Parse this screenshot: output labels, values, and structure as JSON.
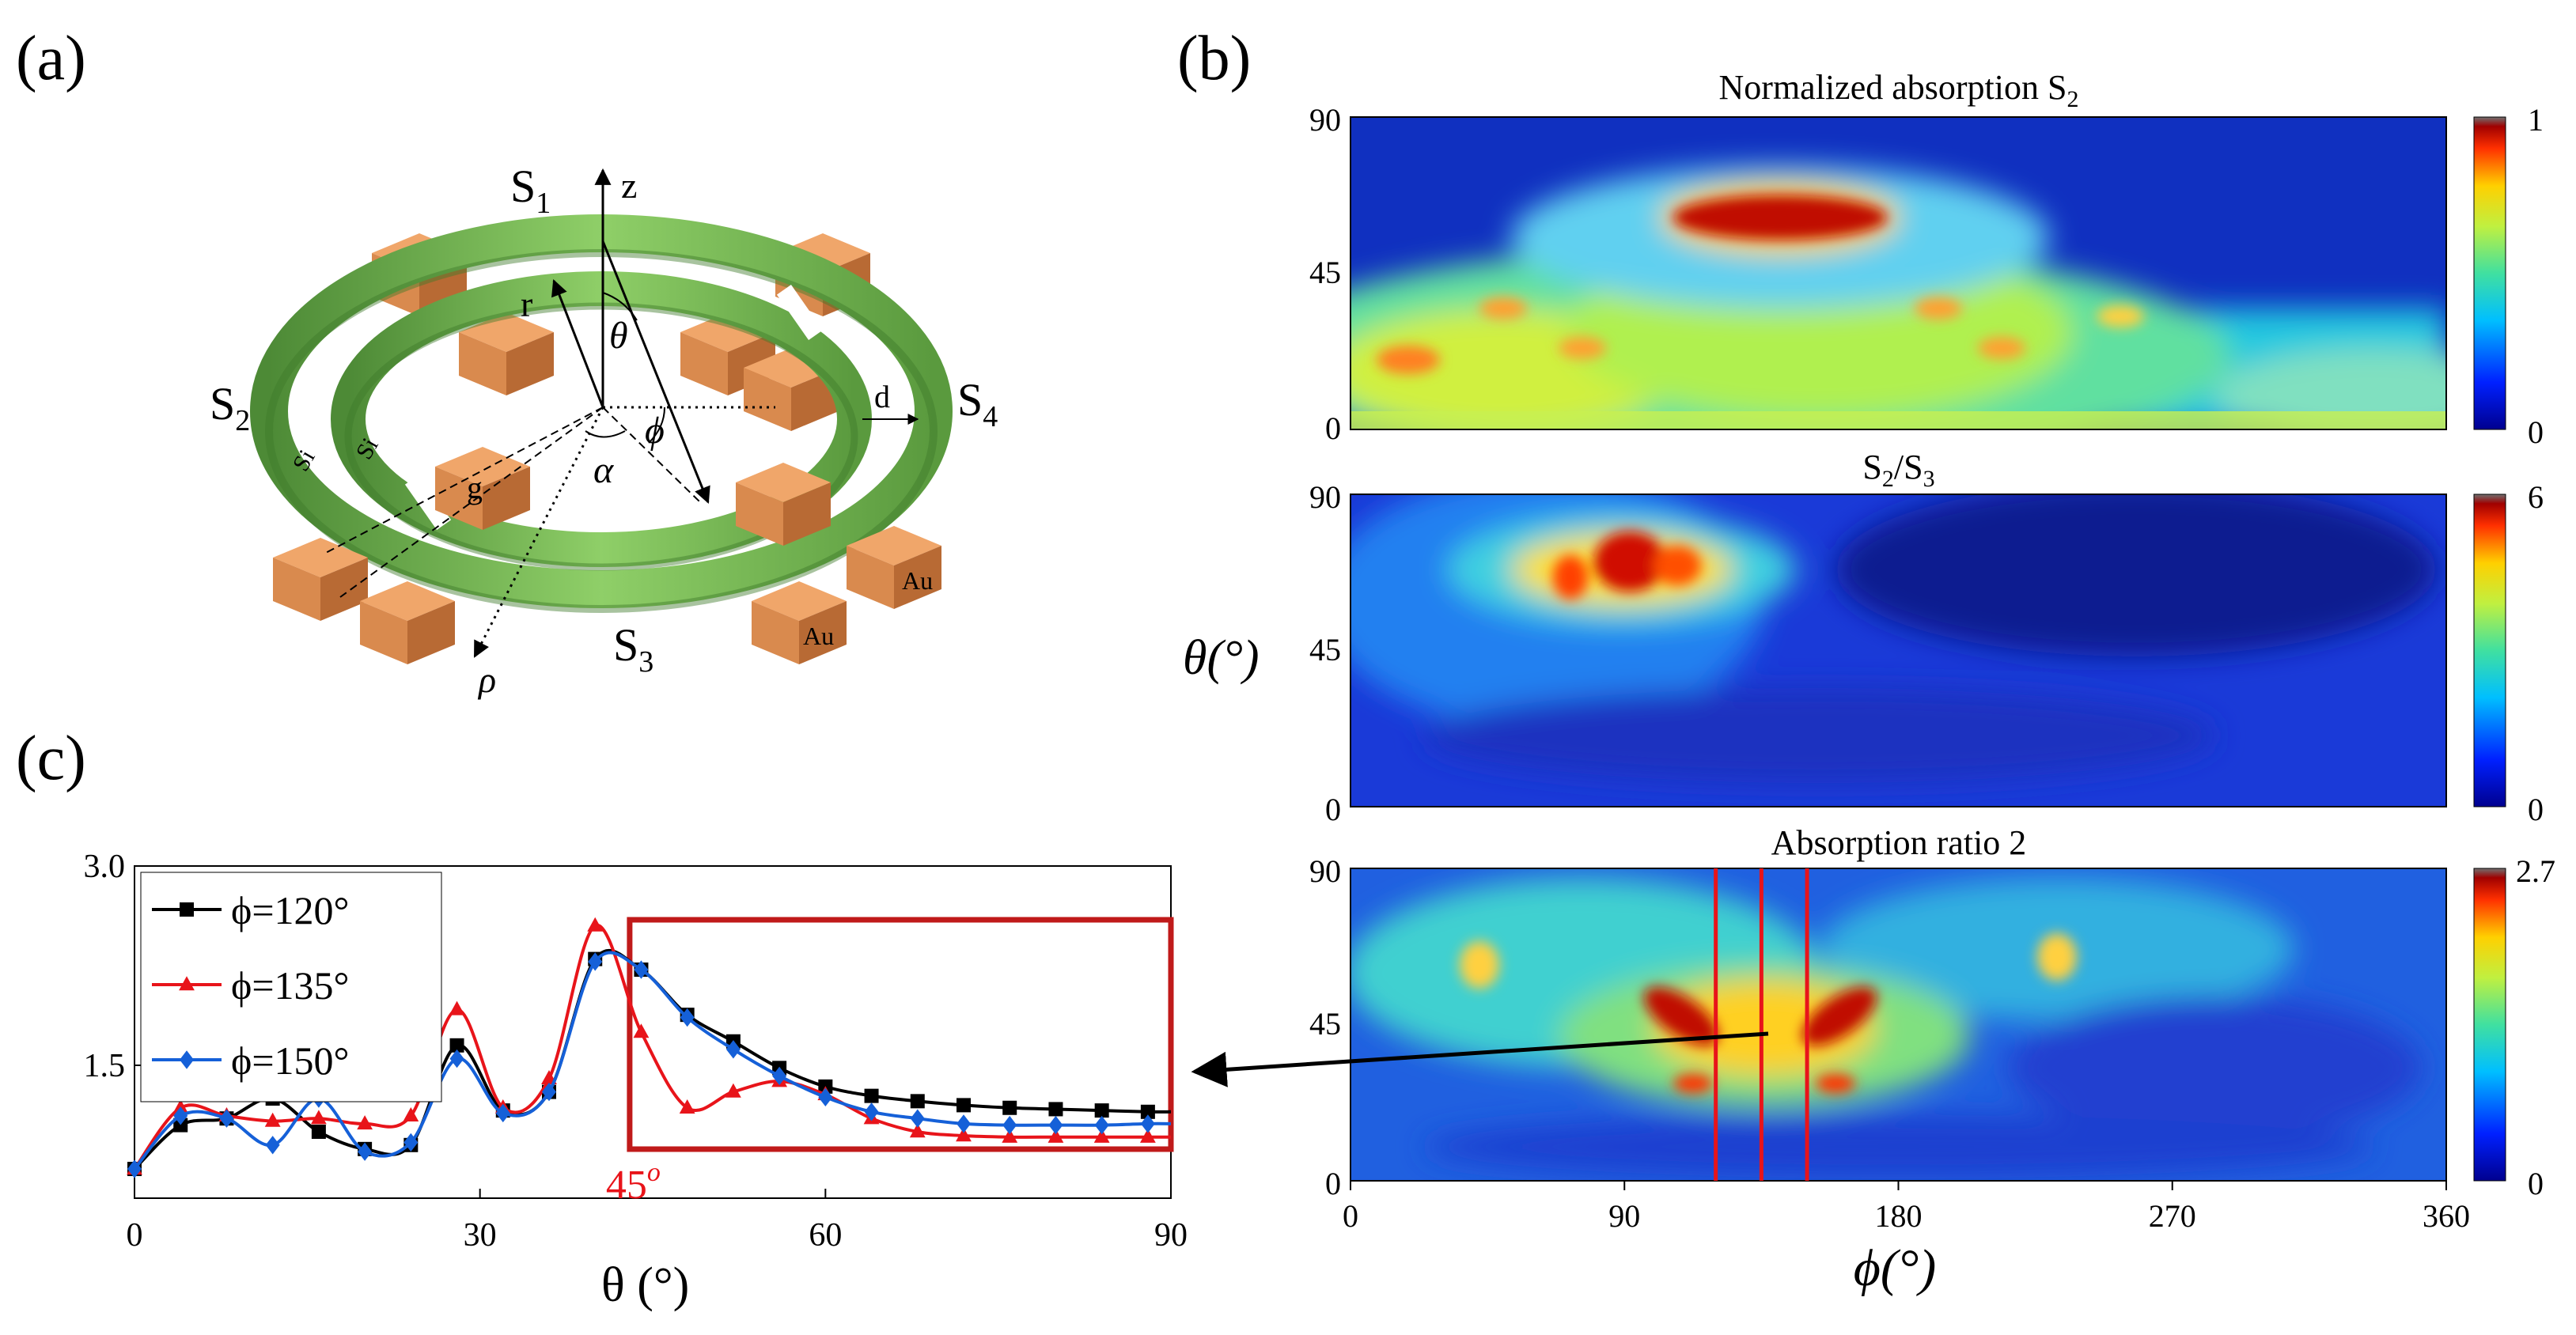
{
  "panels": {
    "a": {
      "label": "(a)"
    },
    "b": {
      "label": "(b)"
    },
    "c": {
      "label": "(c)"
    }
  },
  "diagram": {
    "segments": [
      "S",
      "S",
      "S",
      "S"
    ],
    "segment_subscripts": [
      "1",
      "2",
      "3",
      "4"
    ],
    "axes": {
      "z": "z",
      "r": "r",
      "rho": "ρ"
    },
    "angles": {
      "theta": "θ",
      "phi": "ϕ",
      "alpha": "α"
    },
    "dims": {
      "d": "d",
      "g": "g"
    },
    "materials": {
      "si": "Si",
      "au": "Au"
    },
    "colors": {
      "ring_green": "#7fbf5a",
      "ring_dark": "#4d8a36",
      "block_orange": "#e8955a",
      "block_dark": "#b86a34"
    }
  },
  "heatmaps": [
    {
      "title": "Normalized absorption S",
      "title_sub": "2",
      "title_tail": "",
      "cbar_max": "1",
      "cbar_min": "0"
    },
    {
      "title": "S",
      "title_sub": "2",
      "title_tail": "/S",
      "title_sub2": "3",
      "cbar_max": "6",
      "cbar_min": "0"
    },
    {
      "title": "Absorption ratio 2",
      "title_sub": "",
      "title_tail": "",
      "cbar_max": "2.7",
      "cbar_min": "0"
    }
  ],
  "heatmap_axes": {
    "y_ticks": [
      "90",
      "45",
      "0"
    ],
    "y_label": "θ(°)",
    "x_ticks": [
      "0",
      "90",
      "180",
      "270",
      "360"
    ],
    "x_label": "ϕ(°)",
    "red_lines_phi": [
      120,
      135,
      150
    ]
  },
  "chart_data": {
    "type": "line",
    "title": "",
    "xlabel": "θ (°)",
    "ylabel": "",
    "xlim": [
      0,
      90
    ],
    "ylim": [
      0.5,
      3.0
    ],
    "x_ticks": [
      "0",
      "30",
      "60",
      "90"
    ],
    "y_ticks": [
      "3.0",
      "1.5"
    ],
    "annotation": "45",
    "annotation_sup": "o",
    "highlight_box_x": [
      43,
      90
    ],
    "series": [
      {
        "name": "ϕ=120°",
        "color": "#000000",
        "marker": "square",
        "x": [
          0,
          4,
          8,
          12,
          16,
          20,
          24,
          28,
          32,
          36,
          40,
          44,
          48,
          52,
          56,
          60,
          64,
          68,
          72,
          76,
          80,
          84,
          88,
          90
        ],
        "y": [
          0.72,
          1.05,
          1.1,
          1.25,
          1.0,
          0.87,
          0.9,
          1.65,
          1.16,
          1.3,
          2.3,
          2.22,
          1.88,
          1.68,
          1.48,
          1.34,
          1.27,
          1.23,
          1.2,
          1.18,
          1.17,
          1.16,
          1.15,
          1.15
        ]
      },
      {
        "name": "ϕ=135°",
        "color": "#e8141a",
        "marker": "triangle",
        "x": [
          0,
          4,
          8,
          12,
          16,
          20,
          24,
          28,
          32,
          36,
          40,
          44,
          48,
          52,
          56,
          60,
          64,
          68,
          72,
          76,
          80,
          84,
          88,
          90
        ],
        "y": [
          0.72,
          1.18,
          1.12,
          1.08,
          1.1,
          1.06,
          1.12,
          1.92,
          1.18,
          1.4,
          2.55,
          1.75,
          1.18,
          1.3,
          1.38,
          1.28,
          1.1,
          1.0,
          0.97,
          0.96,
          0.96,
          0.96,
          0.96,
          0.96
        ]
      },
      {
        "name": "ϕ=150°",
        "color": "#1560d8",
        "marker": "diamond",
        "x": [
          0,
          4,
          8,
          12,
          16,
          20,
          24,
          28,
          32,
          36,
          40,
          44,
          48,
          52,
          56,
          60,
          64,
          68,
          72,
          76,
          80,
          84,
          88,
          90
        ],
        "y": [
          0.72,
          1.12,
          1.1,
          0.9,
          1.25,
          0.85,
          0.92,
          1.55,
          1.14,
          1.3,
          2.28,
          2.22,
          1.86,
          1.62,
          1.42,
          1.26,
          1.15,
          1.1,
          1.06,
          1.05,
          1.05,
          1.05,
          1.06,
          1.06
        ]
      }
    ]
  }
}
